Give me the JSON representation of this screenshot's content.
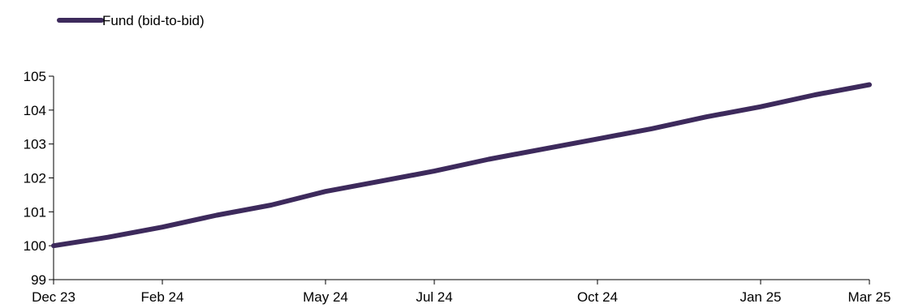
{
  "chart_data": {
    "type": "line",
    "title": "",
    "xlabel": "",
    "ylabel": "",
    "x": [
      "Dec 23",
      "Jan 24",
      "Feb 24",
      "Mar 24",
      "Apr 24",
      "May 24",
      "Jun 24",
      "Jul 24",
      "Aug 24",
      "Sep 24",
      "Oct 24",
      "Nov 24",
      "Dec 24",
      "Jan 25",
      "Feb 25",
      "Mar 25"
    ],
    "x_tick_labels": [
      "Dec 23",
      "Feb 24",
      "May 24",
      "Jul 24",
      "Oct 24",
      "Jan 25",
      "Mar 25"
    ],
    "ylim": [
      99,
      105
    ],
    "y_ticks": [
      99,
      100,
      101,
      102,
      103,
      104,
      105
    ],
    "y_tick_labels": [
      "99",
      "100",
      "101",
      "102",
      "103",
      "104",
      "105"
    ],
    "grid": false,
    "legend_position": "top-left",
    "series": [
      {
        "name": "Fund (bid-to-bid)",
        "color": "#3d2a5c",
        "values": [
          100.0,
          100.25,
          100.55,
          100.9,
          101.2,
          101.6,
          101.9,
          102.2,
          102.55,
          102.85,
          103.15,
          103.45,
          103.8,
          104.1,
          104.45,
          104.75
        ]
      }
    ]
  }
}
